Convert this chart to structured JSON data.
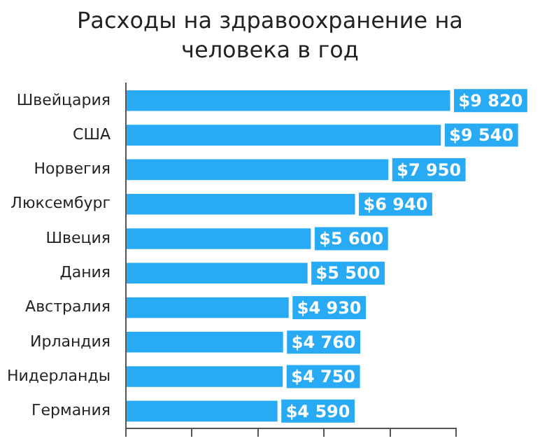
{
  "chart_data": {
    "type": "bar",
    "orientation": "horizontal",
    "relative": false,
    "title": "Расходы на здравоохранение на человека в год",
    "categories": [
      "Швейцария",
      "США",
      "Норвегия",
      "Люксембург",
      "Швеция",
      "Дания",
      "Австралия",
      "Ирландия",
      "Нидерланды",
      "Германия"
    ],
    "values": [
      9820,
      9540,
      7950,
      6940,
      5600,
      5500,
      4930,
      4760,
      4750,
      4590
    ],
    "value_labels": [
      "$9 820",
      "$9 540",
      "$7 950",
      "$6 940",
      "$5 600",
      "$5 500",
      "$4 930",
      "$4 760",
      "$4 750",
      "$4 590"
    ],
    "color": "#29aaf4",
    "tick_labels": "y",
    "grid": false,
    "legend": false
  }
}
